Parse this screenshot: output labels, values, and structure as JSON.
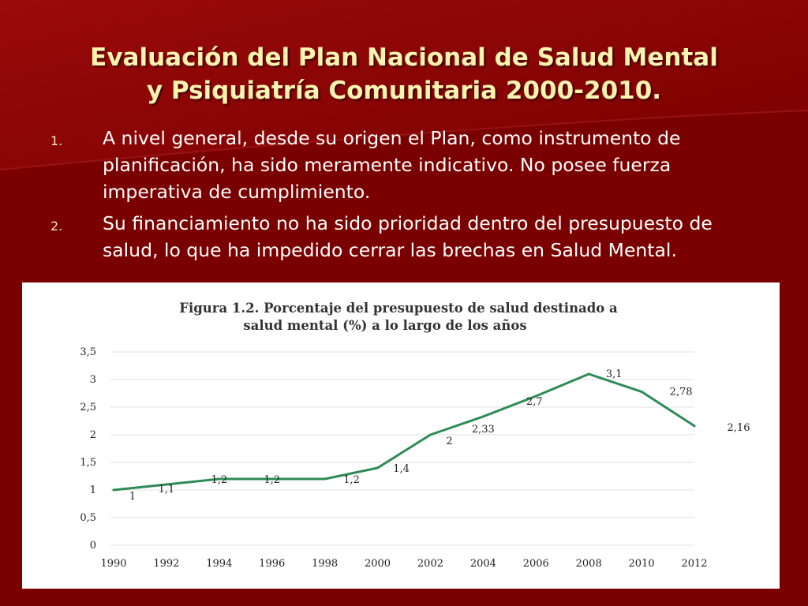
{
  "slide": {
    "title_line1": "Evaluación del Plan Nacional de Salud Mental",
    "title_line2": "y Psiquiatría Comunitaria 2000-2010.",
    "items": [
      {
        "number": "1.",
        "text": "A nivel general, desde su origen el Plan, como instrumento de planificación, ha sido meramente indicativo. No posee fuerza imperativa de cumplimiento."
      },
      {
        "number": "2.",
        "text": "Su financiamiento no ha sido prioridad dentro del presupuesto de salud, lo que ha impedido cerrar las brechas en Salud Mental."
      }
    ]
  },
  "colors": {
    "background": "#7a0000",
    "title": "#fff3b0",
    "line": "#2e8b57"
  },
  "chart_data": {
    "type": "line",
    "title_line1": "Figura 1.2. Porcentaje del presupuesto de salud destinado a",
    "title_line2": "salud mental (%) a lo largo de los años",
    "xlabel": "",
    "ylabel": "",
    "categories": [
      "1990",
      "1992",
      "1994",
      "1996",
      "1998",
      "2000",
      "2002",
      "2004",
      "2006",
      "2008",
      "2010",
      "2012"
    ],
    "values": [
      1,
      1.1,
      1.2,
      1.2,
      1.2,
      1.4,
      2,
      2.33,
      2.7,
      3.1,
      2.78,
      2.16
    ],
    "data_labels": [
      "1",
      "1,1",
      "1,2",
      "1,2",
      "1,2",
      "1,4",
      "2",
      "2,33",
      "2,7",
      "3,1",
      "2,78",
      "2,16"
    ],
    "y_ticks": [
      0,
      0.5,
      1,
      1.5,
      2,
      2.5,
      3,
      3.5
    ],
    "y_tick_labels": [
      "0",
      "0,5",
      "1",
      "1,5",
      "2",
      "2,5",
      "3",
      "3,5"
    ],
    "ylim": [
      0,
      3.5
    ],
    "grid": true,
    "legend": "none"
  }
}
